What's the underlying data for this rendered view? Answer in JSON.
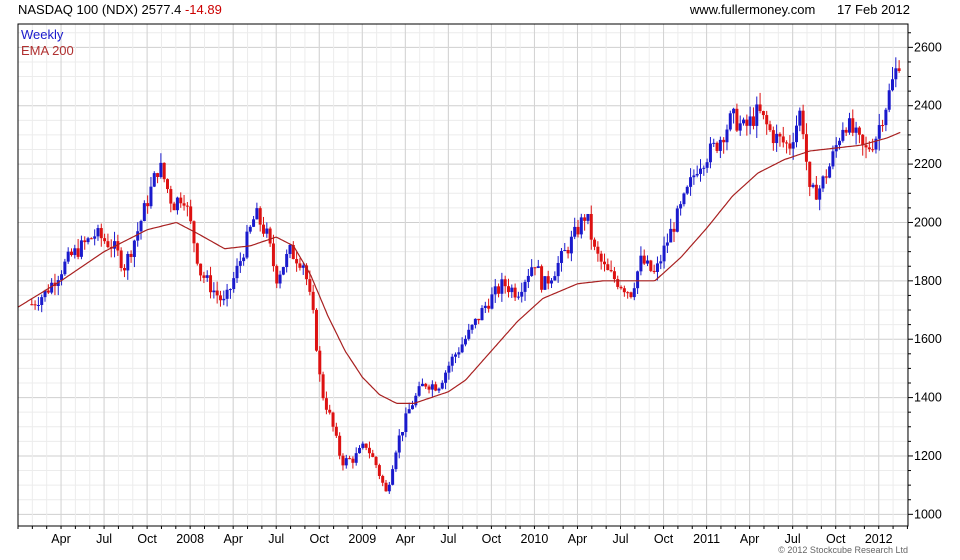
{
  "header": {
    "symbol": "NASDAQ 100 (NDX)",
    "price": "2577.4",
    "change": "-14.89",
    "website": "www.fullermoney.com",
    "date": "17 Feb 2012"
  },
  "legend": {
    "weekly": "Weekly",
    "ema": "EMA 200"
  },
  "copyright": "© 2012 Stockcube Research Ltd",
  "colors": {
    "up": "#1a1acc",
    "down": "#dd1111",
    "ema": "#a82020",
    "grid": "#dcdcdc",
    "frame": "#000000"
  },
  "chart_data": {
    "type": "candlestick",
    "title": "NASDAQ 100 (NDX)",
    "frequency": "Weekly",
    "overlay": "EMA 200",
    "ylim": [
      960,
      2680
    ],
    "y_ticks": [
      1000,
      1200,
      1400,
      1600,
      1800,
      2000,
      2200,
      2400,
      2600
    ],
    "y_ticks_side": "right",
    "x_ticks": [
      {
        "label": "Apr",
        "t": 2007.25
      },
      {
        "label": "Jul",
        "t": 2007.5
      },
      {
        "label": "Oct",
        "t": 2007.75
      },
      {
        "label": "2008",
        "t": 2008.0
      },
      {
        "label": "Apr",
        "t": 2008.25
      },
      {
        "label": "Jul",
        "t": 2008.5
      },
      {
        "label": "Oct",
        "t": 2008.75
      },
      {
        "label": "2009",
        "t": 2009.0
      },
      {
        "label": "Apr",
        "t": 2009.25
      },
      {
        "label": "Jul",
        "t": 2009.5
      },
      {
        "label": "Oct",
        "t": 2009.75
      },
      {
        "label": "2010",
        "t": 2010.0
      },
      {
        "label": "Apr",
        "t": 2010.25
      },
      {
        "label": "Jul",
        "t": 2010.5
      },
      {
        "label": "Oct",
        "t": 2010.75
      },
      {
        "label": "2011",
        "t": 2011.0
      },
      {
        "label": "Apr",
        "t": 2011.25
      },
      {
        "label": "Jul",
        "t": 2011.5
      },
      {
        "label": "Oct",
        "t": 2011.75
      },
      {
        "label": "2012",
        "t": 2012.0
      }
    ],
    "xlim": [
      2007.0,
      2012.17
    ],
    "price_anchors": [
      [
        2007.08,
        1720
      ],
      [
        2007.16,
        1760
      ],
      [
        2007.3,
        1880
      ],
      [
        2007.45,
        1960
      ],
      [
        2007.55,
        1920
      ],
      [
        2007.62,
        1850
      ],
      [
        2007.7,
        1980
      ],
      [
        2007.82,
        2200
      ],
      [
        2007.9,
        2060
      ],
      [
        2007.96,
        2100
      ],
      [
        2008.0,
        2000
      ],
      [
        2008.06,
        1830
      ],
      [
        2008.12,
        1780
      ],
      [
        2008.2,
        1720
      ],
      [
        2008.28,
        1850
      ],
      [
        2008.38,
        2030
      ],
      [
        2008.45,
        1950
      ],
      [
        2008.5,
        1810
      ],
      [
        2008.58,
        1900
      ],
      [
        2008.66,
        1860
      ],
      [
        2008.72,
        1660
      ],
      [
        2008.76,
        1430
      ],
      [
        2008.82,
        1320
      ],
      [
        2008.88,
        1180
      ],
      [
        2008.95,
        1190
      ],
      [
        2009.02,
        1240
      ],
      [
        2009.08,
        1170
      ],
      [
        2009.14,
        1070
      ],
      [
        2009.2,
        1240
      ],
      [
        2009.28,
        1370
      ],
      [
        2009.36,
        1450
      ],
      [
        2009.44,
        1440
      ],
      [
        2009.52,
        1530
      ],
      [
        2009.62,
        1620
      ],
      [
        2009.72,
        1720
      ],
      [
        2009.82,
        1790
      ],
      [
        2009.9,
        1760
      ],
      [
        2010.0,
        1870
      ],
      [
        2010.05,
        1780
      ],
      [
        2010.12,
        1840
      ],
      [
        2010.2,
        1920
      ],
      [
        2010.3,
        2030
      ],
      [
        2010.35,
        1900
      ],
      [
        2010.42,
        1830
      ],
      [
        2010.5,
        1790
      ],
      [
        2010.56,
        1760
      ],
      [
        2010.62,
        1870
      ],
      [
        2010.7,
        1820
      ],
      [
        2010.78,
        1950
      ],
      [
        2010.86,
        2060
      ],
      [
        2010.95,
        2200
      ],
      [
        2011.05,
        2260
      ],
      [
        2011.15,
        2360
      ],
      [
        2011.22,
        2320
      ],
      [
        2011.3,
        2380
      ],
      [
        2011.38,
        2300
      ],
      [
        2011.48,
        2260
      ],
      [
        2011.55,
        2390
      ],
      [
        2011.6,
        2090
      ],
      [
        2011.66,
        2120
      ],
      [
        2011.72,
        2200
      ],
      [
        2011.8,
        2350
      ],
      [
        2011.86,
        2300
      ],
      [
        2011.92,
        2240
      ],
      [
        2011.98,
        2290
      ],
      [
        2012.05,
        2420
      ],
      [
        2012.1,
        2520
      ],
      [
        2012.13,
        2577
      ]
    ],
    "ema_anchors": [
      [
        2007.0,
        1710
      ],
      [
        2007.25,
        1800
      ],
      [
        2007.5,
        1900
      ],
      [
        2007.75,
        1975
      ],
      [
        2007.92,
        2000
      ],
      [
        2008.05,
        1960
      ],
      [
        2008.2,
        1910
      ],
      [
        2008.35,
        1920
      ],
      [
        2008.5,
        1950
      ],
      [
        2008.6,
        1920
      ],
      [
        2008.7,
        1820
      ],
      [
        2008.8,
        1680
      ],
      [
        2008.9,
        1560
      ],
      [
        2009.0,
        1470
      ],
      [
        2009.1,
        1410
      ],
      [
        2009.2,
        1380
      ],
      [
        2009.3,
        1380
      ],
      [
        2009.4,
        1400
      ],
      [
        2009.5,
        1420
      ],
      [
        2009.6,
        1460
      ],
      [
        2009.75,
        1560
      ],
      [
        2009.9,
        1660
      ],
      [
        2010.05,
        1740
      ],
      [
        2010.25,
        1790
      ],
      [
        2010.4,
        1800
      ],
      [
        2010.55,
        1800
      ],
      [
        2010.7,
        1800
      ],
      [
        2010.85,
        1880
      ],
      [
        2011.0,
        1980
      ],
      [
        2011.15,
        2090
      ],
      [
        2011.3,
        2170
      ],
      [
        2011.45,
        2215
      ],
      [
        2011.6,
        2245
      ],
      [
        2011.75,
        2255
      ],
      [
        2011.9,
        2265
      ],
      [
        2012.05,
        2290
      ],
      [
        2012.13,
        2310
      ]
    ]
  }
}
